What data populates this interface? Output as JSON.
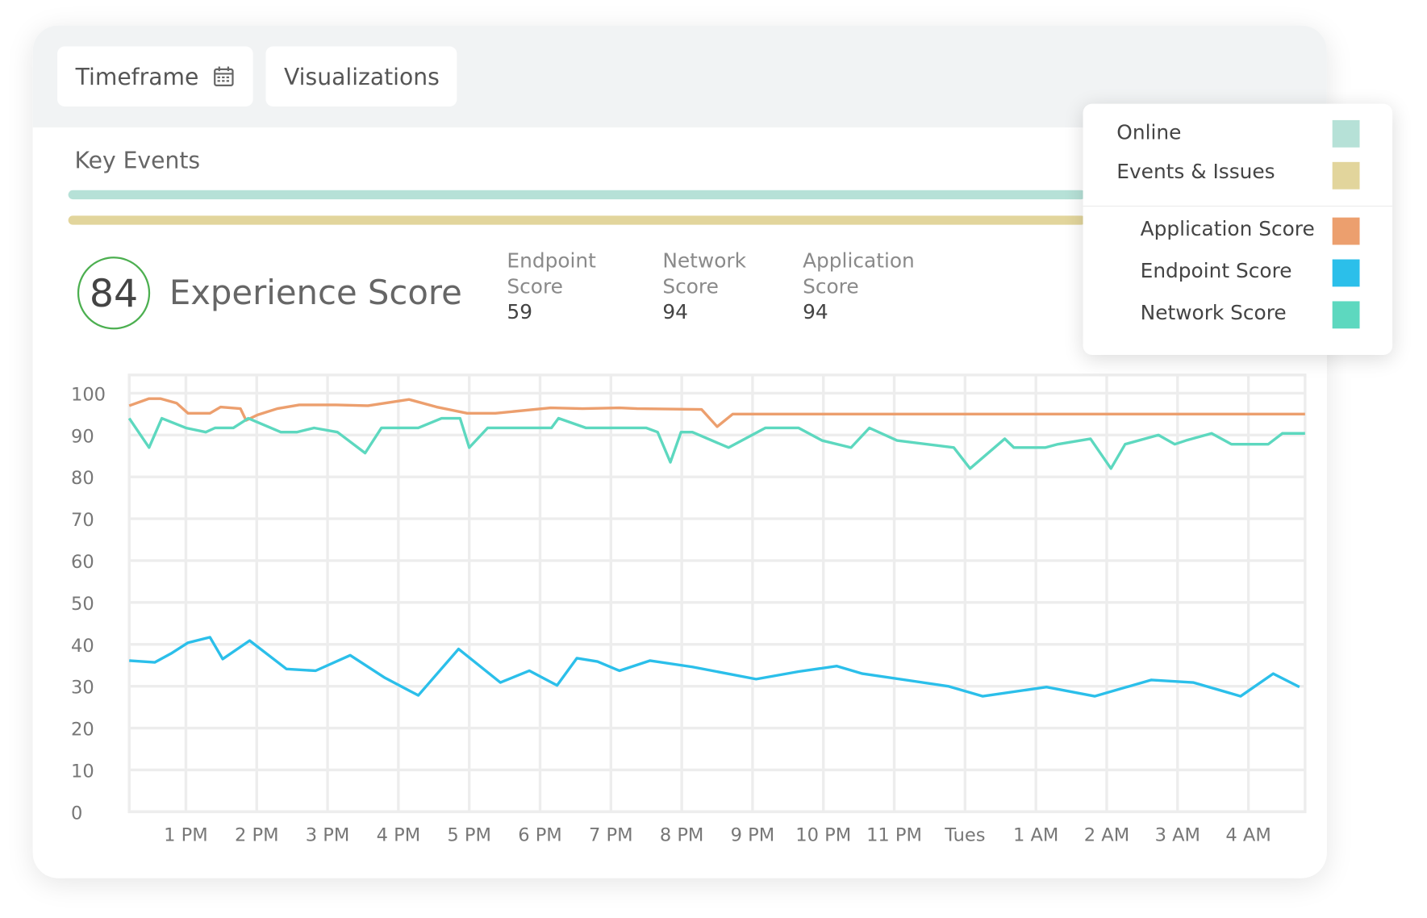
{
  "toolbar": {
    "buttons": [
      "Timeframe",
      "Visualizations"
    ]
  },
  "key_events": {
    "title": "Key Events",
    "tracks": [
      {
        "name": "Online",
        "color": "#b6e1d7"
      },
      {
        "name": "Events & Issues",
        "color": "#e2d59c"
      }
    ]
  },
  "experience_score": {
    "value": 84,
    "label": "Experience Score"
  },
  "sub_scores": [
    {
      "label": "Endpoint Score",
      "value": 59
    },
    {
      "label": "Network Score",
      "value": 94
    },
    {
      "label": "Application Score",
      "value": 94
    }
  ],
  "chart_data": {
    "type": "line",
    "xlim": [
      12.2,
      28.8
    ],
    "ylim": [
      0,
      100
    ],
    "yticks": [
      0,
      10,
      20,
      30,
      40,
      50,
      60,
      70,
      80,
      90,
      100
    ],
    "xticks": [
      {
        "value": 13,
        "label": "1 PM"
      },
      {
        "value": 14,
        "label": "2 PM"
      },
      {
        "value": 15,
        "label": "3 PM"
      },
      {
        "value": 16,
        "label": "4 PM"
      },
      {
        "value": 17,
        "label": "5 PM"
      },
      {
        "value": 18,
        "label": "6 PM"
      },
      {
        "value": 19,
        "label": "7 PM"
      },
      {
        "value": 20,
        "label": "8 PM"
      },
      {
        "value": 21,
        "label": "9 PM"
      },
      {
        "value": 22,
        "label": "10 PM"
      },
      {
        "value": 23,
        "label": "11 PM"
      },
      {
        "value": 24,
        "label": "Tues"
      },
      {
        "value": 25,
        "label": "1 AM"
      },
      {
        "value": 26,
        "label": "2 AM"
      },
      {
        "value": 27,
        "label": "3 AM"
      },
      {
        "value": 28,
        "label": "4 AM"
      }
    ],
    "grid": true,
    "series": [
      {
        "name": "Application Score",
        "color": "#ec9f6e",
        "x": [
          12.2,
          12.48,
          12.64,
          12.87,
          13.03,
          13.34,
          13.49,
          13.77,
          13.85,
          14.01,
          14.29,
          14.6,
          15.12,
          15.57,
          16.15,
          16.54,
          16.97,
          17.37,
          18.15,
          18.6,
          19.12,
          19.37,
          20.28,
          20.5,
          20.72,
          28.8
        ],
        "values": [
          97,
          98.7,
          98.7,
          97.6,
          95.2,
          95.2,
          96.7,
          96.3,
          93.5,
          94.8,
          96.3,
          97.2,
          97.2,
          97,
          98.5,
          96.7,
          95.2,
          95.2,
          96.5,
          96.3,
          96.5,
          96.3,
          96.1,
          92,
          95,
          95
        ]
      },
      {
        "name": "Endpoint Score",
        "color": "#2bbfea",
        "x": [
          12.2,
          12.56,
          12.79,
          13.03,
          13.34,
          13.52,
          13.9,
          14.42,
          14.83,
          15.32,
          15.81,
          16.28,
          16.85,
          17.44,
          17.85,
          18.24,
          18.52,
          18.81,
          19.12,
          19.55,
          20.15,
          21.05,
          21.65,
          22.19,
          22.55,
          23.76,
          24.25,
          25.15,
          25.83,
          26.63,
          27.22,
          27.89,
          28.35,
          28.72
        ],
        "values": [
          36.1,
          35.7,
          37.8,
          40.4,
          41.7,
          36.5,
          40.9,
          34.1,
          33.7,
          37.4,
          32,
          27.8,
          38.9,
          30.9,
          33.7,
          30.2,
          36.7,
          35.9,
          33.7,
          36.1,
          34.6,
          31.7,
          33.5,
          34.8,
          33,
          30,
          27.6,
          29.8,
          27.6,
          31.5,
          30.9,
          27.6,
          33,
          29.8
        ]
      },
      {
        "name": "Network Score",
        "color": "#5dd8bf",
        "x": [
          12.2,
          12.48,
          12.66,
          13,
          13.28,
          13.41,
          13.67,
          13.88,
          14.34,
          14.57,
          14.81,
          15.14,
          15.53,
          15.76,
          16.28,
          16.61,
          16.87,
          17,
          17.26,
          18.16,
          18.26,
          18.65,
          19.5,
          19.66,
          19.84,
          19.99,
          20.15,
          20.66,
          21.18,
          21.65,
          21.98,
          22.39,
          22.65,
          23.04,
          23.84,
          24.07,
          24.56,
          24.69,
          25.13,
          25.31,
          25.77,
          26.06,
          26.26,
          26.73,
          26.96,
          27.12,
          27.48,
          27.76,
          28.28,
          28.48,
          28.8
        ],
        "values": [
          94,
          87,
          94,
          91.7,
          90.7,
          91.7,
          91.7,
          94,
          90.7,
          90.7,
          91.7,
          90.7,
          85.7,
          91.7,
          91.7,
          94,
          94,
          87,
          91.7,
          91.7,
          94,
          91.7,
          91.7,
          90.7,
          83.5,
          90.7,
          90.7,
          87,
          91.7,
          91.7,
          88.7,
          87,
          91.7,
          88.7,
          87,
          82,
          89.1,
          87,
          87,
          87.8,
          89.1,
          82,
          87.8,
          90,
          87.8,
          88.7,
          90.4,
          87.8,
          87.8,
          90.4,
          90.4
        ]
      }
    ]
  }
}
